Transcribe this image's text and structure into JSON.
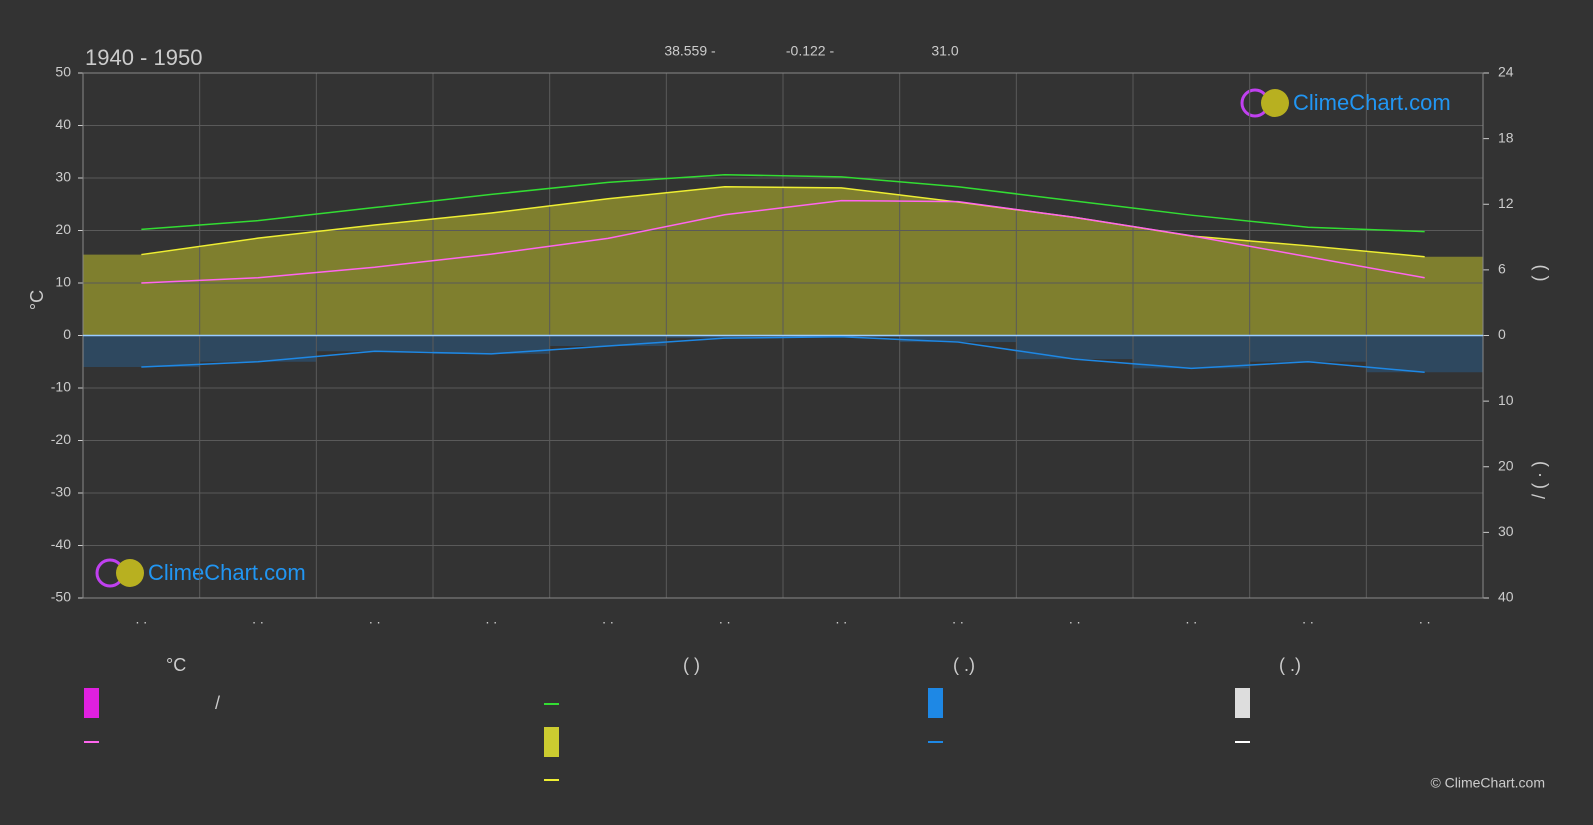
{
  "chart_data": {
    "type": "line",
    "title": "1940 - 1950",
    "header_values": [
      "38.559 -",
      "-0.122 -",
      "31.0"
    ],
    "y_label": "°C",
    "y2_label": "(     )",
    "y3_label": "/    ( · )",
    "categories": [
      ". .",
      ". .",
      ". .",
      ". .",
      ". .",
      ". .",
      ". .",
      ". .",
      ". .",
      ". .",
      ". .",
      ". ."
    ],
    "ylim": [
      -50,
      50
    ],
    "yticks": [
      -50,
      -40,
      -30,
      -20,
      -10,
      0,
      10,
      20,
      30,
      40,
      50
    ],
    "y2lim": [
      0,
      24
    ],
    "y2ticks": [
      0,
      6,
      12,
      18,
      24
    ],
    "y3lim": [
      0,
      40
    ],
    "y3ticks": [
      10,
      20,
      30,
      40
    ],
    "grid": true,
    "series": [
      {
        "name": "",
        "color": "#33dd33",
        "axis": "y2",
        "values": [
          9.7,
          10.5,
          11.7,
          12.9,
          14.0,
          14.7,
          14.5,
          13.6,
          12.3,
          11.0,
          9.9,
          9.5
        ]
      },
      {
        "name": "",
        "color": "#eeee33",
        "axis": "y2",
        "fill": "#9a9a2e",
        "values": [
          7.4,
          8.9,
          10.1,
          11.2,
          12.5,
          13.6,
          13.5,
          12.2,
          10.8,
          9.1,
          8.2,
          7.2
        ]
      },
      {
        "name": "",
        "color": "#ff66ee",
        "values": [
          10,
          11,
          13,
          15.5,
          18.5,
          23,
          25.7,
          25.5,
          22.5,
          19,
          15,
          11
        ]
      },
      {
        "name": "",
        "color": "#1e88e5",
        "axis": "y3",
        "values": [
          4.8,
          4.0,
          2.4,
          2.8,
          1.6,
          0.4,
          0.2,
          1.0,
          3.6,
          5.0,
          4.0,
          5.6
        ]
      }
    ]
  },
  "legend": {
    "headers": [
      "°C",
      "(          )",
      "(   .)",
      "(   .)"
    ],
    "separator": "/"
  },
  "logo_text": "ClimeChart.com",
  "copyright": "© ClimeChart.com"
}
